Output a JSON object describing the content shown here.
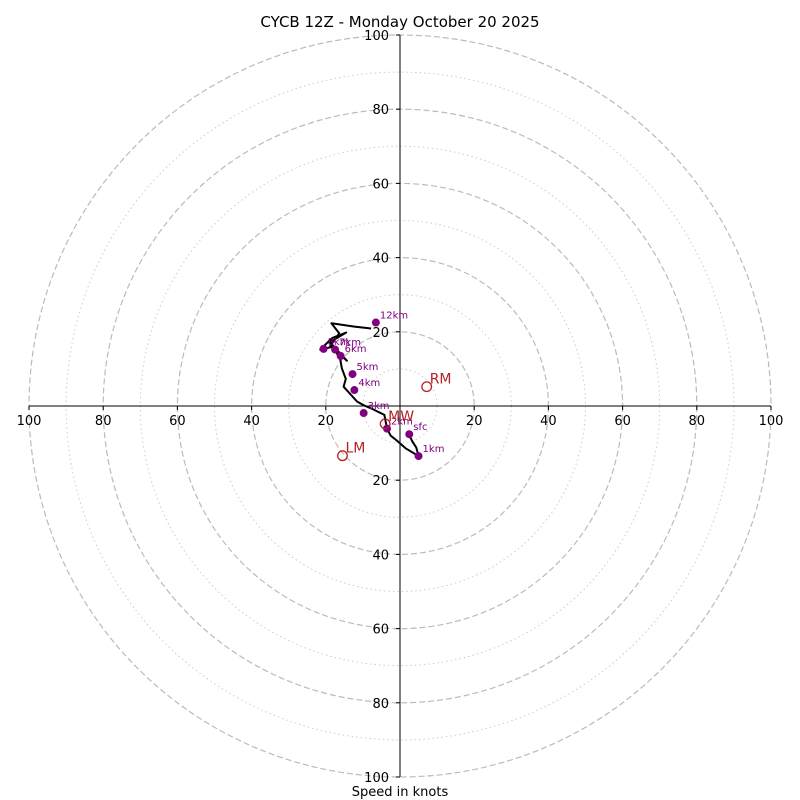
{
  "chart_data": {
    "type": "hodograph",
    "title": "CYCB 12Z - Monday October 20 2025",
    "xlabel": "Speed in knots",
    "units": "knots",
    "axis_range": [
      -100,
      100
    ],
    "tick_labels": [
      "100",
      "80",
      "60",
      "40",
      "20",
      "20",
      "40",
      "60",
      "80",
      "100"
    ],
    "tick_values": [
      -100,
      -80,
      -60,
      -40,
      -20,
      20,
      40,
      60,
      80,
      100
    ],
    "y_tick_labels": [
      "100",
      "80",
      "60",
      "40",
      "20",
      "20",
      "40",
      "60",
      "80",
      "100"
    ],
    "y_tick_values": [
      100,
      80,
      60,
      40,
      20,
      -20,
      -40,
      -60,
      -80,
      -100
    ],
    "rings_major": [
      20,
      40,
      60,
      80,
      100
    ],
    "rings_minor": [
      10,
      30,
      50,
      70,
      90
    ],
    "hodograph_trace": [
      [
        2.4,
        -7.6
      ],
      [
        3.3,
        -9.5
      ],
      [
        4.4,
        -11.2
      ],
      [
        5.0,
        -13.5
      ],
      [
        1.5,
        -11.4
      ],
      [
        -1.0,
        -9.2
      ],
      [
        -2.5,
        -8.0
      ],
      [
        -3.5,
        -6.1
      ],
      [
        -4.2,
        -2.4
      ],
      [
        -6.0,
        -1.5
      ],
      [
        -7.4,
        -0.8
      ],
      [
        -9.6,
        0.1
      ],
      [
        -11.6,
        1.2
      ],
      [
        -15.2,
        5.2
      ],
      [
        -14.6,
        7.3
      ],
      [
        -15.7,
        10.2
      ],
      [
        -16.1,
        12.5
      ],
      [
        -18.0,
        16.0
      ],
      [
        -21.5,
        15.2
      ],
      [
        -18.3,
        18.3
      ],
      [
        -14.5,
        19.8
      ],
      [
        -18.9,
        17.2
      ],
      [
        -14.3,
        12.2
      ],
      [
        -18.8,
        16.2
      ],
      [
        -16.4,
        19.6
      ],
      [
        -18.5,
        22.3
      ],
      [
        -12.3,
        21.4
      ],
      [
        -7.8,
        20.9
      ]
    ],
    "heights": [
      {
        "label": "sfc",
        "u": 2.5,
        "v": -7.6
      },
      {
        "label": "1km",
        "u": 5.0,
        "v": -13.5
      },
      {
        "label": "2km",
        "u": -3.5,
        "v": -6.1
      },
      {
        "label": "3km",
        "u": -9.8,
        "v": -1.9
      },
      {
        "label": "4km",
        "u": -12.3,
        "v": 4.3
      },
      {
        "label": "5km",
        "u": -12.8,
        "v": 8.6
      },
      {
        "label": "6km",
        "u": -16.0,
        "v": 13.5
      },
      {
        "label": "7km",
        "u": -17.5,
        "v": 15.2
      },
      {
        "label": "8km",
        "u": -20.6,
        "v": 15.4
      },
      {
        "label": "12km",
        "u": -6.5,
        "v": 22.5
      }
    ],
    "markers": [
      {
        "label": "RM",
        "u": 7.2,
        "v": 5.2
      },
      {
        "label": "LM",
        "u": -15.5,
        "v": -13.4
      },
      {
        "label": "MW",
        "u": -4.0,
        "v": -4.8
      }
    ],
    "colors": {
      "trace": "#000000",
      "points": "#800080",
      "markers": "#b22222",
      "ring_major": "#bbbbbb",
      "ring_minor": "#cccccc",
      "axis": "#000000"
    }
  }
}
